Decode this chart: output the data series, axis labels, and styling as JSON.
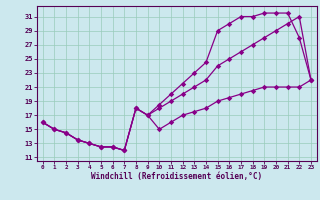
{
  "bg_color": "#cce8ee",
  "line_color": "#880088",
  "grid_color": "#99ccbb",
  "xlabel": "Windchill (Refroidissement éolien,°C)",
  "xmin": -0.5,
  "xmax": 23.5,
  "ymin": 10.5,
  "ymax": 32.5,
  "xticks": [
    0,
    1,
    2,
    3,
    4,
    5,
    6,
    7,
    8,
    9,
    10,
    11,
    12,
    13,
    14,
    15,
    16,
    17,
    18,
    19,
    20,
    21,
    22,
    23
  ],
  "yticks": [
    11,
    13,
    15,
    17,
    19,
    21,
    23,
    25,
    27,
    29,
    31
  ],
  "line1_x": [
    0,
    1,
    2,
    3,
    4,
    5,
    6,
    7,
    8,
    9,
    10,
    11,
    12,
    13,
    14,
    15,
    16,
    17,
    18,
    19,
    20,
    21,
    22,
    23
  ],
  "line1_y": [
    16,
    15,
    14.5,
    13.5,
    13,
    12.5,
    12.5,
    12,
    18,
    17,
    18,
    19,
    20,
    21,
    22,
    24,
    25,
    26,
    27,
    28,
    29,
    30,
    31,
    22
  ],
  "line2_x": [
    0,
    1,
    2,
    3,
    4,
    5,
    6,
    7,
    8,
    9,
    10,
    11,
    12,
    13,
    14,
    15,
    16,
    17,
    18,
    19,
    20,
    21,
    22,
    23
  ],
  "line2_y": [
    16,
    15,
    14.5,
    13.5,
    13,
    12.5,
    12.5,
    12,
    18,
    17,
    18.5,
    20,
    21.5,
    23,
    24.5,
    29,
    30,
    31,
    31,
    31.5,
    31.5,
    31.5,
    28,
    22
  ],
  "line3_x": [
    0,
    1,
    2,
    3,
    4,
    5,
    6,
    7,
    8,
    9,
    10,
    11,
    12,
    13,
    14,
    15,
    16,
    17,
    18,
    19,
    20,
    21,
    22,
    23
  ],
  "line3_y": [
    16,
    15,
    14.5,
    13.5,
    13,
    12.5,
    12.5,
    12,
    18,
    17,
    15,
    16,
    17,
    17.5,
    18,
    19,
    19.5,
    20,
    20.5,
    21,
    21,
    21,
    21,
    22
  ]
}
